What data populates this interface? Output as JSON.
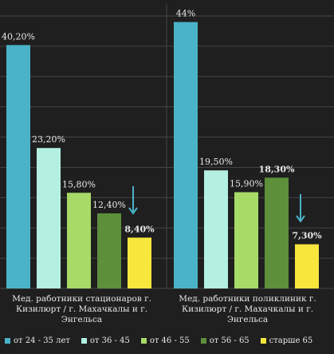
{
  "chart_data": {
    "type": "bar",
    "categories": [
      "Мед. работники стационаров г. Кизилюрт / г. Махачкалы и  г. Энгельса",
      "Мед. работники поликлиник г. Кизилюрт / г. Махачкалы и  г. Энгельса"
    ],
    "series": [
      {
        "name": "от 24 - 35 лет",
        "values": [
          40.2,
          44
        ],
        "labels": [
          "40,20%",
          "44%"
        ],
        "color": "#4ab3c8",
        "label_bold": [
          false,
          false
        ]
      },
      {
        "name": "от 36 - 45",
        "values": [
          23.2,
          19.5
        ],
        "labels": [
          "23,20%",
          "19,50%"
        ],
        "color": "#b4f0e2",
        "label_bold": [
          false,
          false
        ]
      },
      {
        "name": "от 46 - 55",
        "values": [
          15.8,
          15.9
        ],
        "labels": [
          "15,80%",
          "15,90%"
        ],
        "color": "#a8da68",
        "label_bold": [
          false,
          false
        ]
      },
      {
        "name": "от 56 - 65",
        "values": [
          12.4,
          18.3
        ],
        "labels": [
          "12,40%",
          "18,30%"
        ],
        "color": "#5e8f3a",
        "label_bold": [
          false,
          true
        ]
      },
      {
        "name": "старше 65",
        "values": [
          8.4,
          7.3
        ],
        "labels": [
          "8,40%",
          "7,30%"
        ],
        "color": "#f7e63c",
        "label_bold": [
          true,
          true
        ]
      }
    ],
    "ylim": [
      0,
      45
    ],
    "grid": true,
    "legend_position": "bottom",
    "annotations": [
      "down-arrow",
      "down-arrow"
    ]
  },
  "colors": {
    "background": "#1f1f1f",
    "gridline": "#444444",
    "arrow": "#4ab3c8",
    "text": "#e8e8e8"
  }
}
